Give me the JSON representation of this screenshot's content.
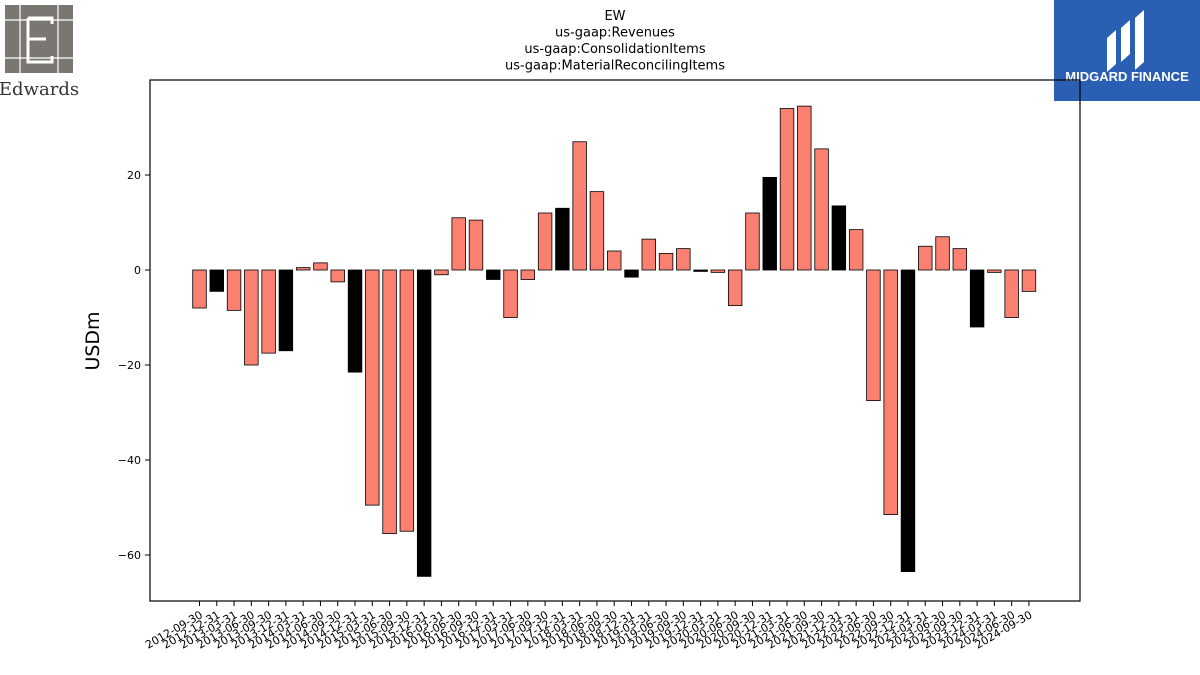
{
  "logos": {
    "left": {
      "text": "Edwards",
      "icon": "edwards-e-logo-icon"
    },
    "right": {
      "text": "MIDGARD FINANCE",
      "icon": "midgard-finance-logo-icon",
      "bg_color": "#2b5fb4"
    }
  },
  "chart_data": {
    "type": "bar",
    "title": [
      "EW",
      "us-gaap:Revenues",
      "us-gaap:ConsolidationItems",
      "us-gaap:MaterialReconcilingItems"
    ],
    "xlabel": "",
    "ylabel": "USDm",
    "ylim": [
      -70,
      40
    ],
    "yticks": [
      20,
      0,
      -20,
      -40,
      -60
    ],
    "ytick_labels": [
      "20",
      "0",
      "−20",
      "−40",
      "−60"
    ],
    "grid": false,
    "colors": {
      "quarter": "#fa8072",
      "year_end": "#000000"
    },
    "categories": [
      "2012-09-30",
      "2012-12-31",
      "2013-03-31",
      "2013-06-30",
      "2013-09-30",
      "2013-12-31",
      "2014-03-31",
      "2014-06-30",
      "2014-09-30",
      "2014-12-31",
      "2015-03-31",
      "2015-06-30",
      "2015-09-30",
      "2015-12-31",
      "2016-03-31",
      "2016-06-30",
      "2016-09-30",
      "2016-12-31",
      "2017-03-31",
      "2017-06-30",
      "2017-09-30",
      "2017-12-31",
      "2018-03-31",
      "2018-06-30",
      "2018-09-30",
      "2018-12-31",
      "2019-03-31",
      "2019-06-30",
      "2019-09-30",
      "2019-12-31",
      "2020-03-31",
      "2020-06-30",
      "2020-09-30",
      "2020-12-31",
      "2021-03-31",
      "2021-06-30",
      "2021-09-30",
      "2021-12-31",
      "2022-03-31",
      "2022-06-30",
      "2022-09-30",
      "2022-12-31",
      "2023-03-31",
      "2023-06-30",
      "2023-09-30",
      "2023-12-31",
      "2024-03-31",
      "2024-06-30",
      "2024-09-30"
    ],
    "tick_labels": [
      "2012-09-30",
      "2012-12-31",
      "2013-03-31",
      "2013-06-30",
      "2013-09-30",
      "2013-12-31",
      "2014-03-31",
      "2014-06-30",
      "2014-09-30",
      "2014-12-31",
      "2015-03-31",
      "2015-06-30",
      "2015-09-30",
      "2015-12-31",
      "2016-03-31",
      "2016-06-30",
      "2016-09-30",
      "2016-12-31",
      "2017-03-31",
      "2017-06-30",
      "2017-09-30",
      "2017-12-31",
      "2018-03-31",
      "2018-06-30",
      "2018-09-30",
      "2018-12-31",
      "2019-03-31",
      "2019-06-30",
      "2019-09-30",
      "2019-12-31",
      "2020-03-31",
      "2020-06-30",
      "2020-09-30",
      "2020-12-31",
      "2021-03-31",
      "2021-06-30",
      "2021-09-30",
      "2021-12-31",
      "2022-03-31",
      "2022-06-30",
      "2022-09-30",
      "2022-12-31",
      "2023-03-31",
      "2023-06-30",
      "2023-09-30",
      "2023-12-31",
      "2024-03-31",
      "2024-06-30",
      "2024-09-30"
    ],
    "values": [
      -8.0,
      -4.5,
      -8.5,
      -20.0,
      -17.5,
      -17.0,
      0.5,
      1.5,
      -2.5,
      -21.5,
      -49.5,
      -55.5,
      -55.0,
      -64.5,
      -1.0,
      11.0,
      10.5,
      -2.0,
      -10.0,
      -2.0,
      12.0,
      13.0,
      27.0,
      16.5,
      4.0,
      -1.5,
      6.5,
      3.5,
      4.5,
      -0.3,
      -0.5,
      -7.5,
      12.0,
      19.5,
      34.0,
      34.5,
      25.5,
      13.5,
      8.5,
      -27.5,
      -51.5,
      -63.5,
      5.0,
      7.0,
      4.5,
      -12.0,
      -0.5,
      -10.0,
      -4.5
    ],
    "year_end": [
      false,
      true,
      false,
      false,
      false,
      true,
      false,
      false,
      false,
      true,
      false,
      false,
      false,
      true,
      false,
      false,
      false,
      true,
      false,
      false,
      false,
      true,
      false,
      false,
      false,
      true,
      false,
      false,
      false,
      true,
      false,
      false,
      false,
      true,
      false,
      false,
      false,
      true,
      false,
      false,
      false,
      true,
      false,
      false,
      false,
      true,
      false,
      false,
      false
    ]
  }
}
